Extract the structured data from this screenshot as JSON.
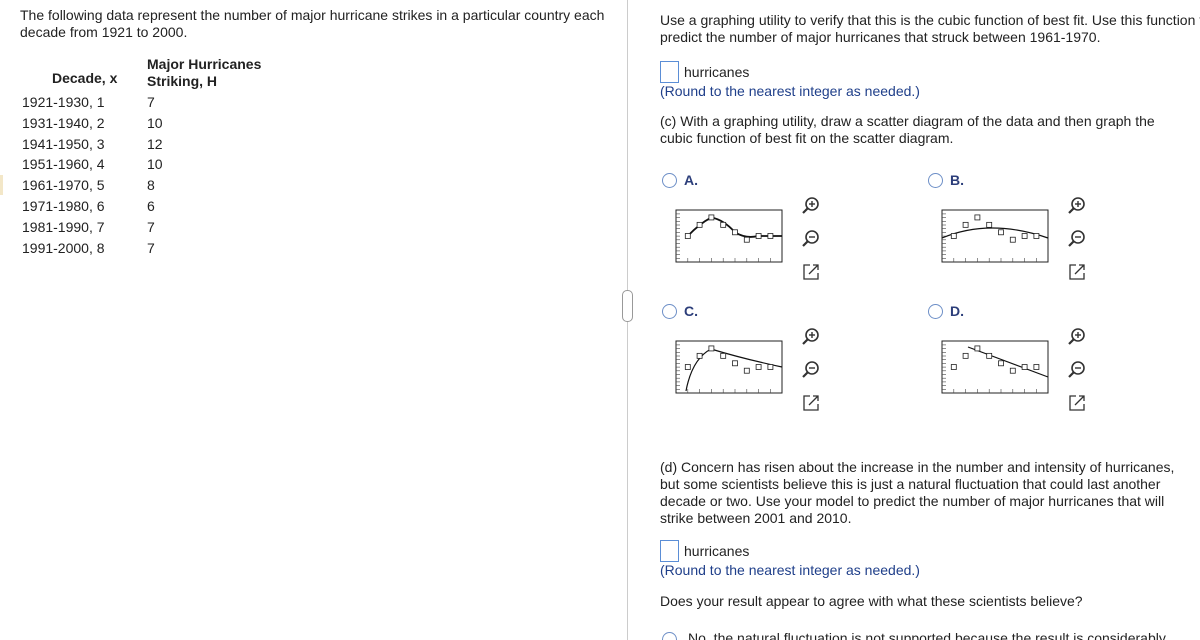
{
  "intro": "The following data represent the number of major hurricane strikes in a particular country each decade from 1921 to 2000.",
  "table": {
    "headers": [
      "Decade, x",
      "Major Hurricanes Striking, H"
    ],
    "rows": [
      [
        "1921-1930, 1",
        7
      ],
      [
        "1931-1940, 2",
        10
      ],
      [
        "1941-1950, 3",
        12
      ],
      [
        "1951-1960, 4",
        10
      ],
      [
        "1961-1970, 5",
        8
      ],
      [
        "1971-1980, 6",
        6
      ],
      [
        "1981-1990, 7",
        7
      ],
      [
        "1991-2000, 8",
        7
      ]
    ]
  },
  "question_b": "Use a graphing utility to verify that this is the cubic function of best fit.  Use this function to predict the number of major hurricanes that struck between 1961-1970.",
  "answer_b": {
    "unit": "hurricanes",
    "hint": "(Round to the nearest integer as needed.)"
  },
  "question_c": "(c) With a graphing utility, draw a scatter diagram of the data and then graph the cubic function of best fit on the scatter diagram.",
  "options": [
    "A.",
    "B.",
    "C.",
    "D."
  ],
  "question_d": "(d) Concern has risen about the increase in the number and intensity of hurricanes, but some scientists believe this is just a natural fluctuation that could last another decade or two.  Use your model to predict the number of major hurricanes that will strike between 2001 and 2010.",
  "answer_d": {
    "unit": "hurricanes",
    "hint": "(Round to the nearest integer as needed.)"
  },
  "question_agree": "Does your result appear to agree with what these scientists believe?",
  "choice_partial": "No, the natural fluctuation is not supported because the result is considerably"
}
